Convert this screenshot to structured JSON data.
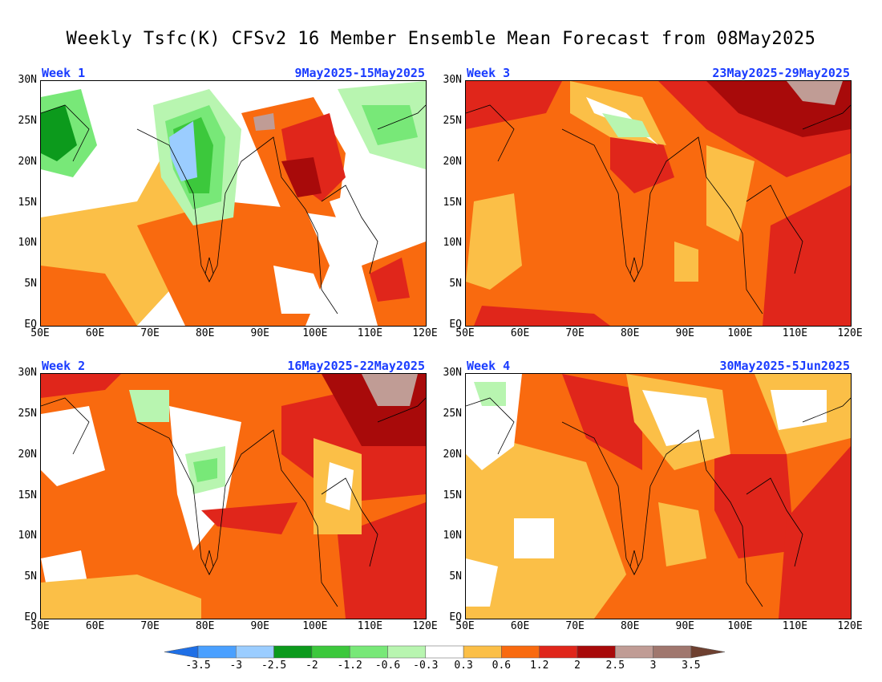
{
  "title": "Weekly Tsfc(K) CFSv2 16 Member Ensemble Mean Forecast from 08May2025",
  "panels": [
    {
      "label": "Week 1",
      "dates": "9May2025-15May2025"
    },
    {
      "label": "Week 3",
      "dates": "23May2025-29May2025"
    },
    {
      "label": "Week 2",
      "dates": "16May2025-22May2025"
    },
    {
      "label": "Week 4",
      "dates": "30May2025-5Jun2025"
    }
  ],
  "axes": {
    "lat_labels": [
      "30N",
      "25N",
      "20N",
      "15N",
      "10N",
      "5N",
      "EQ"
    ],
    "lon_labels": [
      "50E",
      "60E",
      "70E",
      "80E",
      "90E",
      "100E",
      "110E",
      "120E"
    ],
    "lat_range": [
      0,
      30
    ],
    "lon_range": [
      50,
      120
    ]
  },
  "legend": {
    "labels": [
      "-3.5",
      "-3",
      "-2.5",
      "-2",
      "-1.2",
      "-0.6",
      "-0.3",
      "0.3",
      "0.6",
      "1.2",
      "2",
      "2.5",
      "3",
      "3.5"
    ],
    "colors": [
      "#1e6fe6",
      "#4aa0ff",
      "#9bcdff",
      "#0c9a1c",
      "#3cc83c",
      "#78e878",
      "#b8f5b0",
      "#ffffff",
      "#fbbf47",
      "#f96a0f",
      "#e0261b",
      "#a80a0a",
      "#c09c95",
      "#a0776e",
      "#6e4030"
    ]
  }
}
